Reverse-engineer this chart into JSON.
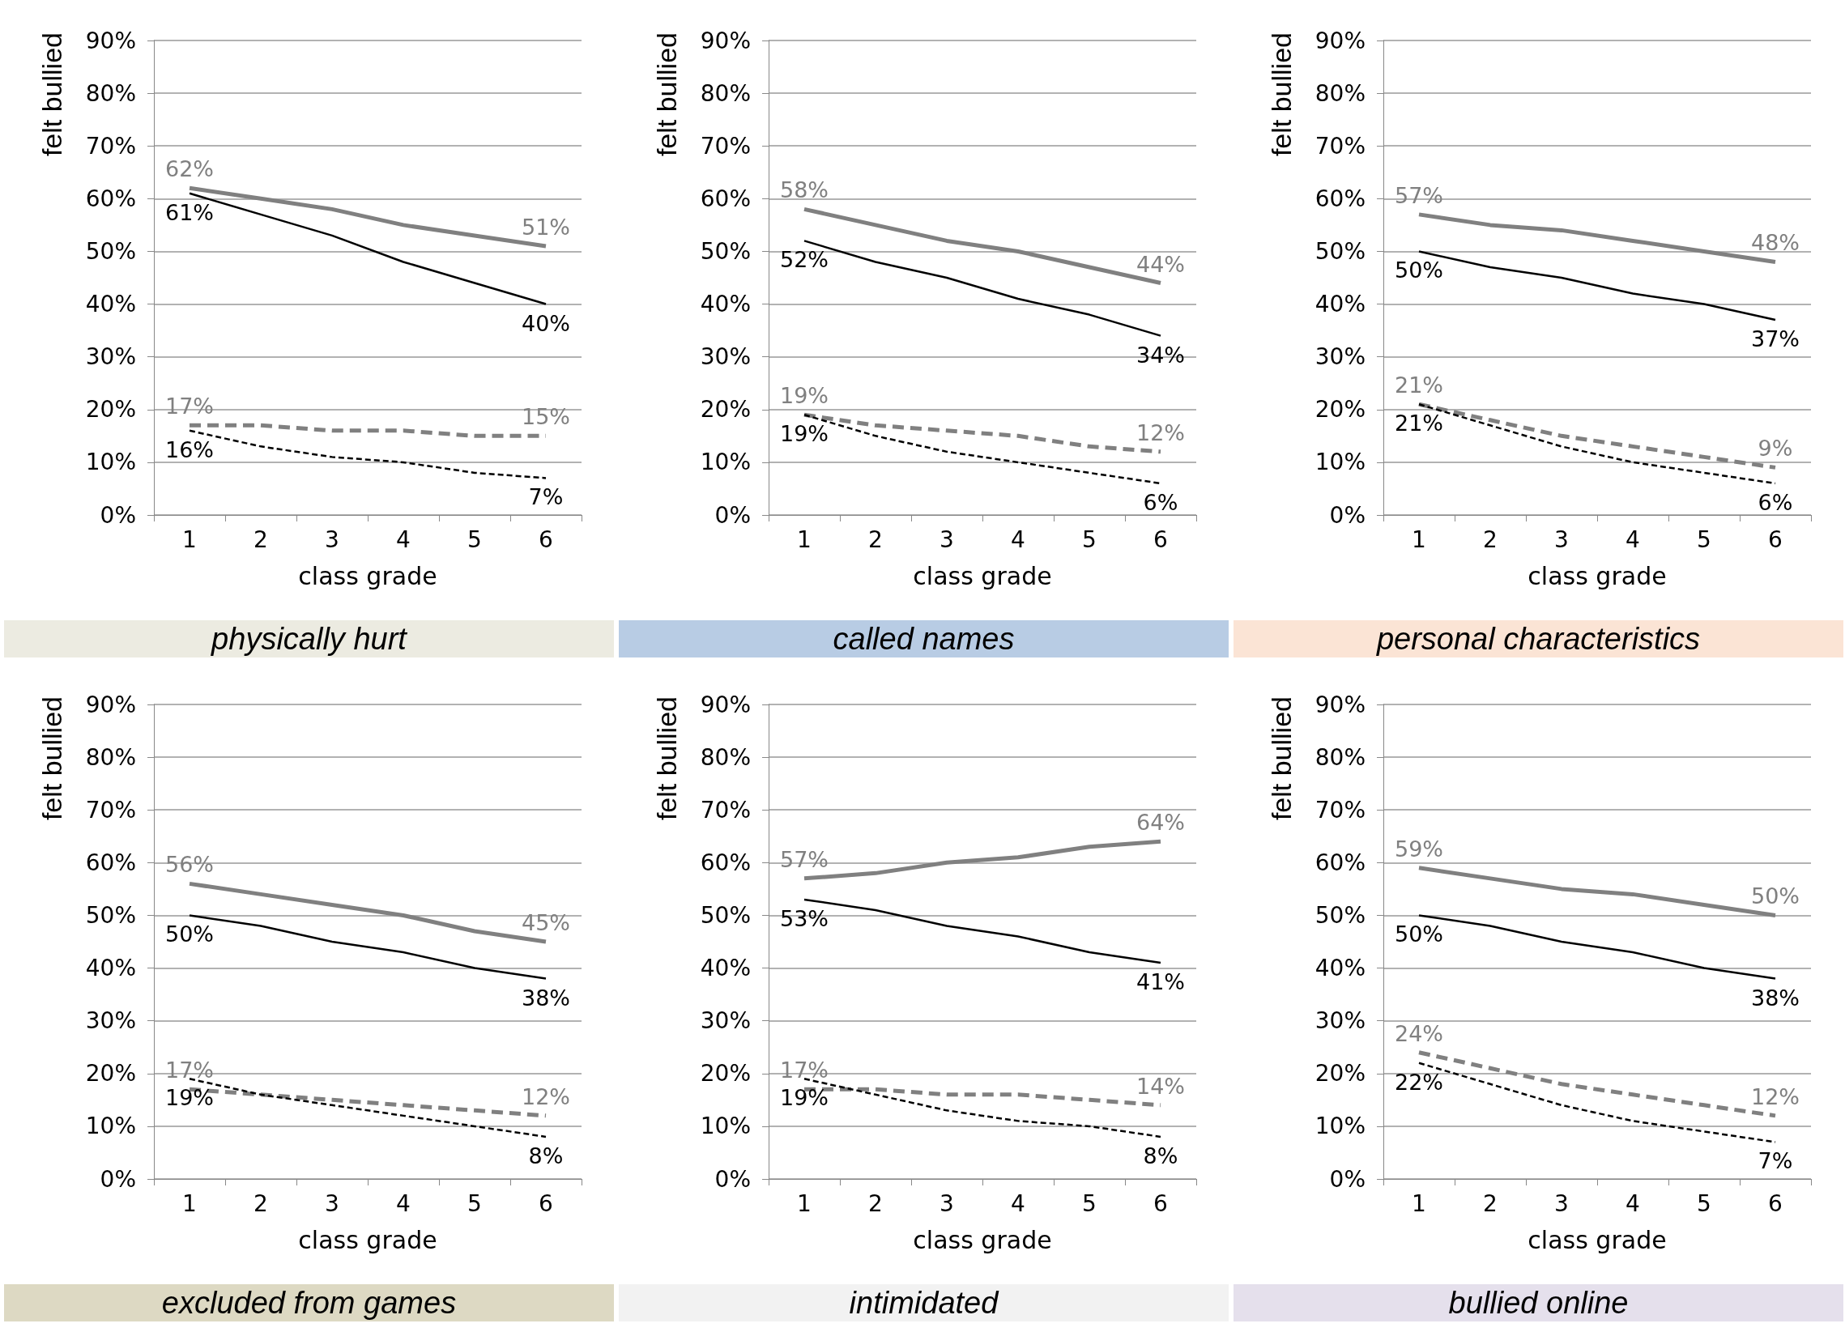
{
  "chart_data": [
    {
      "type": "line",
      "title": "physically hurt",
      "xlabel": "class grade",
      "ylabel": "felt bullied",
      "categories": [
        "1",
        "2",
        "3",
        "4",
        "5",
        "6"
      ],
      "ylim": [
        0,
        90
      ],
      "yticks": [
        {
          "value": 0,
          "label": "0%"
        },
        {
          "value": 10,
          "label": "10%"
        },
        {
          "value": 20,
          "label": "20%"
        },
        {
          "value": 30,
          "label": "30%"
        },
        {
          "value": 40,
          "label": "40%"
        },
        {
          "value": 50,
          "label": "50%"
        },
        {
          "value": 60,
          "label": "60%"
        },
        {
          "value": 70,
          "label": "70%"
        },
        {
          "value": 80,
          "label": "80%"
        },
        {
          "value": 90,
          "label": "90%"
        }
      ],
      "grid": "y",
      "marker": "none",
      "series": [
        {
          "color": "#808080",
          "line_style": "solid",
          "values": [
            62,
            60,
            58,
            55,
            53,
            51
          ],
          "value_labels": [
            "62%",
            null,
            null,
            null,
            null,
            "51%"
          ]
        },
        {
          "color": "#000000",
          "line_style": "solid",
          "values": [
            61,
            57,
            53,
            48,
            44,
            40
          ],
          "value_labels": [
            "61%",
            null,
            null,
            null,
            null,
            "40%"
          ]
        },
        {
          "color": "#808080",
          "line_style": "dashed",
          "values": [
            17,
            17,
            16,
            16,
            15,
            15
          ],
          "value_labels": [
            "17%",
            null,
            null,
            null,
            null,
            "15%"
          ]
        },
        {
          "color": "#000000",
          "line_style": "dashed",
          "values": [
            16,
            13,
            11,
            10,
            8,
            7
          ],
          "value_labels": [
            "16%",
            null,
            null,
            null,
            null,
            "7%"
          ]
        }
      ]
    },
    {
      "type": "line",
      "title": "called names",
      "xlabel": "class grade",
      "ylabel": "felt bullied",
      "categories": [
        "1",
        "2",
        "3",
        "4",
        "5",
        "6"
      ],
      "ylim": [
        0,
        90
      ],
      "yticks": [
        {
          "value": 0,
          "label": "0%"
        },
        {
          "value": 10,
          "label": "10%"
        },
        {
          "value": 20,
          "label": "20%"
        },
        {
          "value": 30,
          "label": "30%"
        },
        {
          "value": 40,
          "label": "40%"
        },
        {
          "value": 50,
          "label": "50%"
        },
        {
          "value": 60,
          "label": "60%"
        },
        {
          "value": 70,
          "label": "70%"
        },
        {
          "value": 80,
          "label": "80%"
        },
        {
          "value": 90,
          "label": "90%"
        }
      ],
      "grid": "y",
      "marker": "none",
      "series": [
        {
          "color": "#808080",
          "line_style": "solid",
          "values": [
            58,
            55,
            52,
            50,
            47,
            44
          ],
          "value_labels": [
            "58%",
            null,
            null,
            null,
            null,
            "44%"
          ]
        },
        {
          "color": "#000000",
          "line_style": "solid",
          "values": [
            52,
            48,
            45,
            41,
            38,
            34
          ],
          "value_labels": [
            "52%",
            null,
            null,
            null,
            null,
            "34%"
          ]
        },
        {
          "color": "#808080",
          "line_style": "dashed",
          "values": [
            19,
            17,
            16,
            15,
            13,
            12
          ],
          "value_labels": [
            "19%",
            null,
            null,
            null,
            null,
            "12%"
          ]
        },
        {
          "color": "#000000",
          "line_style": "dashed",
          "values": [
            19,
            15,
            12,
            10,
            8,
            6
          ],
          "value_labels": [
            "19%",
            null,
            null,
            null,
            null,
            "6%"
          ]
        }
      ]
    },
    {
      "type": "line",
      "title": "personal characteristics",
      "xlabel": "class grade",
      "ylabel": "felt bullied",
      "categories": [
        "1",
        "2",
        "3",
        "4",
        "5",
        "6"
      ],
      "ylim": [
        0,
        90
      ],
      "yticks": [
        {
          "value": 0,
          "label": "0%"
        },
        {
          "value": 10,
          "label": "10%"
        },
        {
          "value": 20,
          "label": "20%"
        },
        {
          "value": 30,
          "label": "30%"
        },
        {
          "value": 40,
          "label": "40%"
        },
        {
          "value": 50,
          "label": "50%"
        },
        {
          "value": 60,
          "label": "60%"
        },
        {
          "value": 70,
          "label": "70%"
        },
        {
          "value": 80,
          "label": "80%"
        },
        {
          "value": 90,
          "label": "90%"
        }
      ],
      "grid": "y",
      "marker": "none",
      "series": [
        {
          "color": "#808080",
          "line_style": "solid",
          "values": [
            57,
            55,
            54,
            52,
            50,
            48
          ],
          "value_labels": [
            "57%",
            null,
            null,
            null,
            null,
            "48%"
          ]
        },
        {
          "color": "#000000",
          "line_style": "solid",
          "values": [
            50,
            47,
            45,
            42,
            40,
            37
          ],
          "value_labels": [
            "50%",
            null,
            null,
            null,
            null,
            "37%"
          ]
        },
        {
          "color": "#808080",
          "line_style": "dashed",
          "values": [
            21,
            18,
            15,
            13,
            11,
            9
          ],
          "value_labels": [
            "21%",
            null,
            null,
            null,
            null,
            "9%"
          ]
        },
        {
          "color": "#000000",
          "line_style": "dashed",
          "values": [
            21,
            17,
            13,
            10,
            8,
            6
          ],
          "value_labels": [
            "21%",
            null,
            null,
            null,
            null,
            "6%"
          ]
        }
      ]
    },
    {
      "type": "line",
      "title": "excluded from games",
      "xlabel": "class grade",
      "ylabel": "felt bullied",
      "categories": [
        "1",
        "2",
        "3",
        "4",
        "5",
        "6"
      ],
      "ylim": [
        0,
        90
      ],
      "yticks": [
        {
          "value": 0,
          "label": "0%"
        },
        {
          "value": 10,
          "label": "10%"
        },
        {
          "value": 20,
          "label": "20%"
        },
        {
          "value": 30,
          "label": "30%"
        },
        {
          "value": 40,
          "label": "40%"
        },
        {
          "value": 50,
          "label": "50%"
        },
        {
          "value": 60,
          "label": "60%"
        },
        {
          "value": 70,
          "label": "70%"
        },
        {
          "value": 80,
          "label": "80%"
        },
        {
          "value": 90,
          "label": "90%"
        }
      ],
      "grid": "y",
      "marker": "none",
      "series": [
        {
          "color": "#808080",
          "line_style": "solid",
          "values": [
            56,
            54,
            52,
            50,
            47,
            45
          ],
          "value_labels": [
            "56%",
            null,
            null,
            null,
            null,
            "45%"
          ]
        },
        {
          "color": "#000000",
          "line_style": "solid",
          "values": [
            50,
            48,
            45,
            43,
            40,
            38
          ],
          "value_labels": [
            "50%",
            null,
            null,
            null,
            null,
            "38%"
          ]
        },
        {
          "color": "#808080",
          "line_style": "dashed",
          "values": [
            17,
            16,
            15,
            14,
            13,
            12
          ],
          "value_labels": [
            "17%",
            null,
            null,
            null,
            null,
            "12%"
          ]
        },
        {
          "color": "#000000",
          "line_style": "dashed",
          "values": [
            19,
            16,
            14,
            12,
            10,
            8
          ],
          "value_labels": [
            "19%",
            null,
            null,
            null,
            null,
            "8%"
          ]
        }
      ]
    },
    {
      "type": "line",
      "title": "intimidated",
      "xlabel": "class grade",
      "ylabel": "felt bullied",
      "categories": [
        "1",
        "2",
        "3",
        "4",
        "5",
        "6"
      ],
      "ylim": [
        0,
        90
      ],
      "yticks": [
        {
          "value": 0,
          "label": "0%"
        },
        {
          "value": 10,
          "label": "10%"
        },
        {
          "value": 20,
          "label": "20%"
        },
        {
          "value": 30,
          "label": "30%"
        },
        {
          "value": 40,
          "label": "40%"
        },
        {
          "value": 50,
          "label": "50%"
        },
        {
          "value": 60,
          "label": "60%"
        },
        {
          "value": 70,
          "label": "70%"
        },
        {
          "value": 80,
          "label": "80%"
        },
        {
          "value": 90,
          "label": "90%"
        }
      ],
      "grid": "y",
      "marker": "none",
      "series": [
        {
          "color": "#808080",
          "line_style": "solid",
          "values": [
            57,
            58,
            60,
            61,
            63,
            64
          ],
          "value_labels": [
            "57%",
            null,
            null,
            null,
            null,
            "64%"
          ]
        },
        {
          "color": "#000000",
          "line_style": "solid",
          "values": [
            53,
            51,
            48,
            46,
            43,
            41
          ],
          "value_labels": [
            "53%",
            null,
            null,
            null,
            null,
            "41%"
          ]
        },
        {
          "color": "#808080",
          "line_style": "dashed",
          "values": [
            17,
            17,
            16,
            16,
            15,
            14
          ],
          "value_labels": [
            "17%",
            null,
            null,
            null,
            null,
            "14%"
          ]
        },
        {
          "color": "#000000",
          "line_style": "dashed",
          "values": [
            19,
            16,
            13,
            11,
            10,
            8
          ],
          "value_labels": [
            "19%",
            null,
            null,
            null,
            null,
            "8%"
          ]
        }
      ]
    },
    {
      "type": "line",
      "title": "bullied online",
      "xlabel": "class grade",
      "ylabel": "felt bullied",
      "categories": [
        "1",
        "2",
        "3",
        "4",
        "5",
        "6"
      ],
      "ylim": [
        0,
        90
      ],
      "yticks": [
        {
          "value": 0,
          "label": "0%"
        },
        {
          "value": 10,
          "label": "10%"
        },
        {
          "value": 20,
          "label": "20%"
        },
        {
          "value": 30,
          "label": "30%"
        },
        {
          "value": 40,
          "label": "40%"
        },
        {
          "value": 50,
          "label": "50%"
        },
        {
          "value": 60,
          "label": "60%"
        },
        {
          "value": 70,
          "label": "70%"
        },
        {
          "value": 80,
          "label": "80%"
        },
        {
          "value": 90,
          "label": "90%"
        }
      ],
      "grid": "y",
      "marker": "none",
      "series": [
        {
          "color": "#808080",
          "line_style": "solid",
          "values": [
            59,
            57,
            55,
            54,
            52,
            50
          ],
          "value_labels": [
            "59%",
            null,
            null,
            null,
            null,
            "50%"
          ]
        },
        {
          "color": "#000000",
          "line_style": "solid",
          "values": [
            50,
            48,
            45,
            43,
            40,
            38
          ],
          "value_labels": [
            "50%",
            null,
            null,
            null,
            null,
            "38%"
          ]
        },
        {
          "color": "#808080",
          "line_style": "dashed",
          "values": [
            24,
            21,
            18,
            16,
            14,
            12
          ],
          "value_labels": [
            "24%",
            null,
            null,
            null,
            null,
            "12%"
          ]
        },
        {
          "color": "#000000",
          "line_style": "dashed",
          "values": [
            22,
            18,
            14,
            11,
            9,
            7
          ],
          "value_labels": [
            "22%",
            null,
            null,
            null,
            null,
            "7%"
          ]
        }
      ]
    }
  ]
}
